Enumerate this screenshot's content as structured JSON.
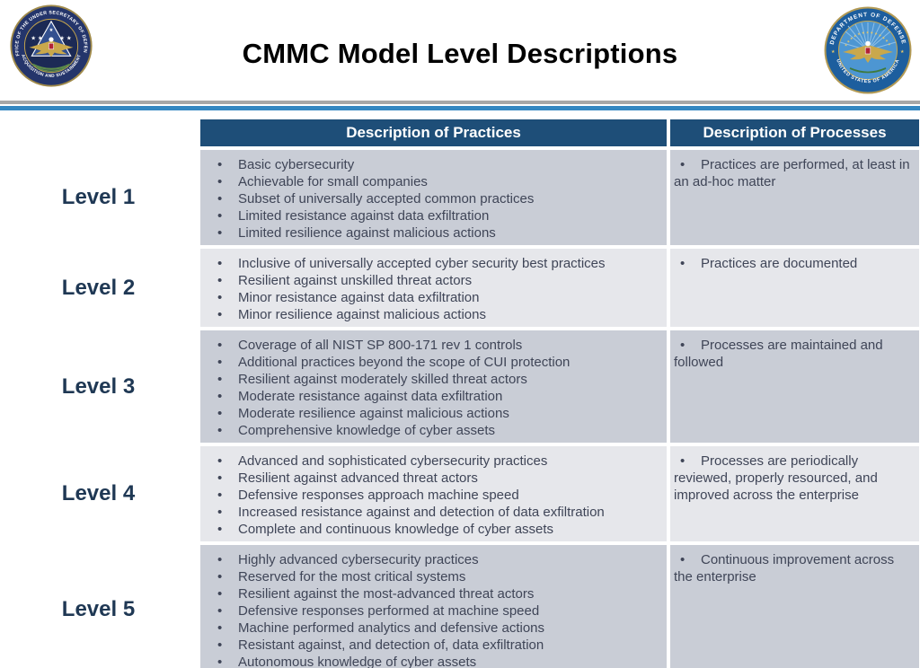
{
  "page": {
    "title": "CMMC Model Level Descriptions"
  },
  "seals": {
    "left": {
      "top_text": "OFFICE OF THE UNDER SECRETARY OF DEFENSE",
      "bottom_text": "ACQUISITION AND SUSTAINMENT"
    },
    "right": {
      "top_text": "DEPARTMENT OF DEFENSE",
      "bottom_text": "UNITED STATES OF AMERICA"
    }
  },
  "table": {
    "headers": {
      "practices": "Description of Practices",
      "processes": "Description of Processes"
    },
    "rows": [
      {
        "level": "Level 1",
        "practices": [
          "Basic cybersecurity",
          "Achievable for small companies",
          "Subset of universally accepted common practices",
          "Limited resistance against data exfiltration",
          "Limited resilience against malicious actions"
        ],
        "processes": [
          "Practices are performed, at least in an ad-hoc matter"
        ]
      },
      {
        "level": "Level 2",
        "practices": [
          "Inclusive of universally accepted cyber security best practices",
          "Resilient against unskilled threat actors",
          "Minor resistance against data exfiltration",
          "Minor resilience against malicious actions"
        ],
        "processes": [
          "Practices are documented"
        ]
      },
      {
        "level": "Level 3",
        "practices": [
          "Coverage of all NIST SP 800-171 rev 1 controls",
          "Additional practices beyond the scope of CUI protection",
          "Resilient against moderately skilled threat actors",
          "Moderate resistance against data exfiltration",
          "Moderate resilience against malicious actions",
          "Comprehensive knowledge of cyber assets"
        ],
        "processes": [
          "Processes are maintained and followed"
        ]
      },
      {
        "level": "Level 4",
        "practices": [
          "Advanced and sophisticated cybersecurity practices",
          "Resilient against advanced threat actors",
          "Defensive responses approach machine speed",
          "Increased resistance against and detection of data exfiltration",
          "Complete and continuous knowledge of cyber assets"
        ],
        "processes": [
          "Processes are periodically reviewed, properly resourced, and improved across the enterprise"
        ]
      },
      {
        "level": "Level 5",
        "practices": [
          "Highly advanced cybersecurity practices",
          "Reserved for the most critical systems",
          "Resilient against the most-advanced threat actors",
          "Defensive responses performed at machine speed",
          "Machine performed analytics and defensive actions",
          "Resistant against, and detection of, data exfiltration",
          "Autonomous knowledge of cyber assets"
        ],
        "processes": [
          "Continuous improvement across the enterprise"
        ]
      }
    ]
  },
  "colors": {
    "header_bg": "#1E4E78",
    "row_dark": "#C9CDD6",
    "row_light": "#E6E7EB",
    "divider_gray": "#A7A7A7",
    "divider_blue": "#3487C1",
    "level_text": "#1F3854",
    "body_text": "#3F4557",
    "seal_left_navy": "#24356B",
    "seal_right_blue": "#1D5E9E",
    "seal_gold": "#C9A84C"
  }
}
